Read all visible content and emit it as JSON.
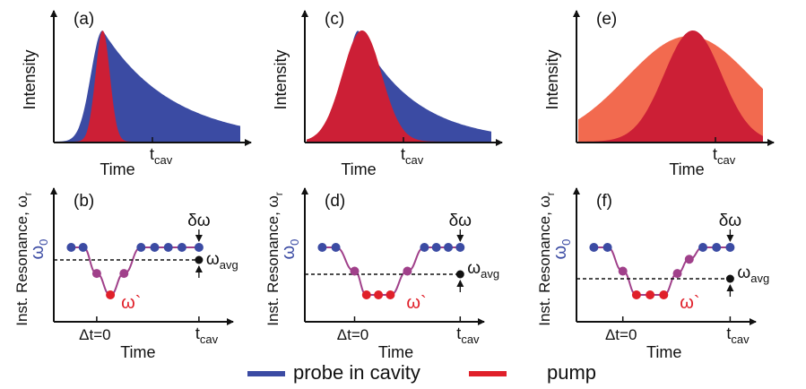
{
  "colors": {
    "probe": "#3b4ba3",
    "pump": "#e0202a",
    "pump_fill": "#cc1f36",
    "pump_orange": "#f26a4f",
    "transition": "#a0408a",
    "curve": "#a0408a",
    "axis": "#111111"
  },
  "panels": [
    {
      "top_letter": "(a)",
      "bottom_letter": "(b)",
      "top_ylabel": "Intensity",
      "top_xlabel": "Time",
      "tcav": "t",
      "tcav_sub": "cav",
      "bottom_ylabel": "Inst. Resonance, ω",
      "bottom_ylabel_sub": "r",
      "omega0": "ω",
      "omega0_sub": "0",
      "delta_omega": "δω",
      "omega_avg": "ω",
      "omega_avg_sub": "avg",
      "omega_prime": "ω`",
      "dt0": "Δt=0",
      "bottom_xlabel": "Time",
      "bottom_tcav": "t",
      "bottom_tcav_sub": "cav",
      "dots": [
        "probe",
        "probe",
        "transition",
        "pump",
        "transition",
        "probe",
        "probe",
        "probe",
        "probe",
        "probe"
      ]
    },
    {
      "top_letter": "(c)",
      "bottom_letter": "(d)",
      "top_ylabel": "Intensity",
      "top_xlabel": "Time",
      "tcav": "t",
      "tcav_sub": "cav",
      "bottom_ylabel": "Inst. Resonance, ω",
      "bottom_ylabel_sub": "r",
      "omega0": "ω",
      "omega0_sub": "0",
      "delta_omega": "δω",
      "omega_avg": "ω",
      "omega_avg_sub": "avg",
      "omega_prime": "ω`",
      "dt0": "Δt=0",
      "bottom_xlabel": "Time",
      "bottom_tcav": "t",
      "bottom_tcav_sub": "cav",
      "dots": [
        "probe",
        "probe",
        "transition",
        "pump",
        "pump",
        "pump",
        "transition",
        "probe",
        "probe",
        "probe",
        "probe"
      ]
    },
    {
      "top_letter": "(e)",
      "bottom_letter": "(f)",
      "top_ylabel": "Intensity",
      "top_xlabel": "Time",
      "tcav": "t",
      "tcav_sub": "cav",
      "bottom_ylabel": "Inst. Resonance, ω",
      "bottom_ylabel_sub": "r",
      "omega0": "ω",
      "omega0_sub": "0",
      "delta_omega": "δω",
      "omega_avg": "ω",
      "omega_avg_sub": "avg",
      "omega_prime": "ω`",
      "dt0": "Δt=0",
      "bottom_xlabel": "Time",
      "bottom_tcav": "t",
      "bottom_tcav_sub": "cav",
      "dots": [
        "probe",
        "probe",
        "transition",
        "pump",
        "pump",
        "pump",
        "transition",
        "transition",
        "probe",
        "probe",
        "probe"
      ]
    }
  ],
  "legend": [
    {
      "label": "probe in cavity",
      "color_key": "probe"
    },
    {
      "label": "pump",
      "color_key": "pump"
    }
  ]
}
